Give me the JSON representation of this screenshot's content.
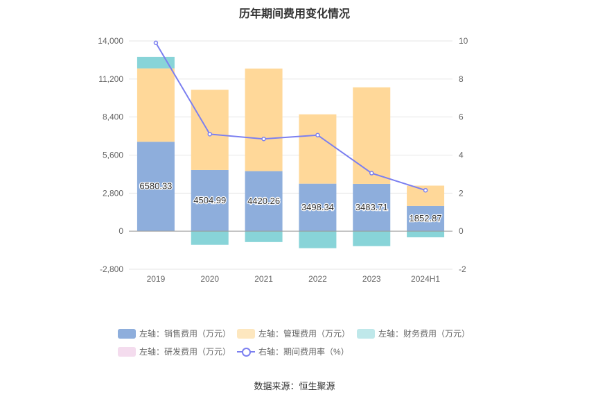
{
  "title": "历年期间费用变化情况",
  "source": "数据来源：恒生聚源",
  "legend": [
    {
      "label": "左轴：销售费用（万元）",
      "color": "#8eaedc",
      "kind": "bar"
    },
    {
      "label": "左轴：管理费用（万元）",
      "color": "#fde7bf",
      "kind": "bar"
    },
    {
      "label": "左轴：财务费用（万元）",
      "color": "#bfe8ea",
      "kind": "bar"
    },
    {
      "label": "左轴：研发费用（万元）",
      "color": "#f4dcee",
      "kind": "bar"
    },
    {
      "label": "右轴：期间费用率（%）",
      "color": "#7b7ff0",
      "kind": "line"
    }
  ],
  "chart_data": {
    "type": "bar",
    "title": "历年期间费用变化情况",
    "categories": [
      "2019",
      "2020",
      "2021",
      "2022",
      "2023",
      "2024H1"
    ],
    "y_left": {
      "ticks": [
        "14,000",
        "11,200",
        "8,400",
        "5,600",
        "2,800",
        "0",
        "-2,800"
      ],
      "ylim": [
        -2800,
        14000
      ]
    },
    "y_right": {
      "ticks": [
        "10",
        "8",
        "6",
        "4",
        "2",
        "0",
        "-2"
      ],
      "ylim": [
        -2,
        10
      ]
    },
    "series": [
      {
        "name": "左轴：销售费用（万元）",
        "axis": "left",
        "stack": true,
        "color": "#8eaedc",
        "values": [
          6580.33,
          4504.99,
          4420.26,
          3498.34,
          3483.71,
          1852.87
        ],
        "labels": [
          "6580.33",
          "4504.99",
          "4420.26",
          "3498.34",
          "3483.71",
          "1852.87"
        ]
      },
      {
        "name": "左轴：管理费用（万元）",
        "axis": "left",
        "stack": true,
        "color": "#ffd899",
        "values": [
          5400,
          5900,
          7550,
          5100,
          7100,
          1500
        ]
      },
      {
        "name": "左轴：财务费用（万元）",
        "axis": "left",
        "stack": true,
        "color": "#88d4d8",
        "values": [
          850,
          -1000,
          -800,
          -1250,
          -1100,
          -450
        ]
      },
      {
        "name": "左轴：研发费用（万元）",
        "axis": "left",
        "stack": true,
        "color": "#f4dcee",
        "values": [
          0,
          0,
          0,
          0,
          0,
          0
        ]
      },
      {
        "name": "右轴：期间费用率（%）",
        "axis": "right",
        "type": "line",
        "color": "#7b7ff0",
        "values": [
          9.9,
          5.1,
          4.85,
          5.05,
          3.05,
          2.15
        ]
      }
    ],
    "grid": true,
    "legend_position": "bottom"
  }
}
